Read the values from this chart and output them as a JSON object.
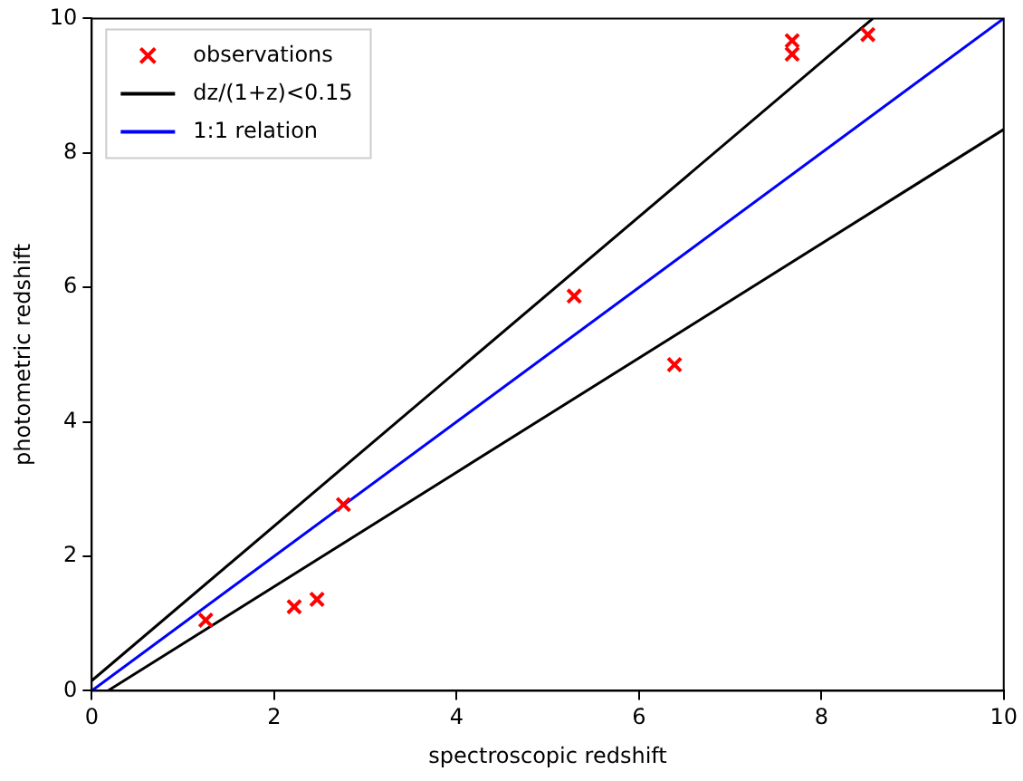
{
  "chart_data": {
    "type": "scatter",
    "xlabel": "spectroscopic redshift",
    "ylabel": "photometric redshift",
    "xlim": [
      0,
      10
    ],
    "ylim": [
      0,
      10
    ],
    "xticks": [
      0,
      2,
      4,
      6,
      8,
      10
    ],
    "yticks": [
      0,
      2,
      4,
      6,
      8,
      10
    ],
    "legend": "top left",
    "grid": false,
    "series": [
      {
        "name": "observations",
        "color": "#ff0000",
        "marker": "cross",
        "x": [
          1.25,
          2.22,
          2.47,
          2.76,
          5.29,
          6.39,
          7.68,
          7.68,
          8.51
        ],
        "values": [
          1.05,
          1.25,
          1.36,
          2.77,
          5.87,
          4.85,
          9.67,
          9.47,
          9.76
        ]
      },
      {
        "type": "line",
        "name": "dz/(1+z)<0.15",
        "color": "#000000",
        "marker": "none",
        "x": [
          0,
          8.565
        ],
        "values": [
          0.15,
          10
        ]
      },
      {
        "type": "line",
        "color": "#000000",
        "marker": "none",
        "x": [
          0.176,
          10
        ],
        "values": [
          0,
          8.35
        ]
      },
      {
        "type": "line",
        "name": "1:1 relation",
        "color": "#0000ff",
        "marker": "none",
        "x": [
          0,
          10
        ],
        "values": [
          0,
          10
        ]
      }
    ]
  }
}
